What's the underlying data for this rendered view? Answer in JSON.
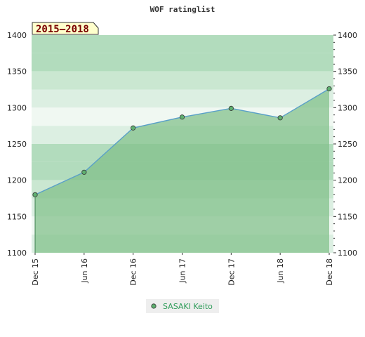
{
  "chart_data": {
    "type": "area",
    "title": "WOF ratinglist",
    "badge": "2015–2018",
    "xlabel": "",
    "ylabel": "",
    "ylim": [
      1100,
      1400
    ],
    "yticks": [
      1100,
      1150,
      1200,
      1250,
      1300,
      1350,
      1400
    ],
    "xticks": [
      "Dec 15",
      "Jun 16",
      "Dec 16",
      "Jun 17",
      "Dec 17",
      "Jun 18",
      "Dec 18"
    ],
    "series": [
      {
        "name": "SASAKI Keito",
        "values": [
          1180,
          1211,
          1272,
          1287,
          1299,
          1286,
          1326
        ],
        "color": "#5aa0c8",
        "marker_color": "#5fb070"
      }
    ],
    "grid": true,
    "legend": "bottom-center",
    "colors": {
      "area": "#7fbf88",
      "band_dark": "#b2dcbd",
      "band_mid": "#cae7d1",
      "band_light": "#dcefe2",
      "band_white": "#f0f8f2"
    }
  }
}
